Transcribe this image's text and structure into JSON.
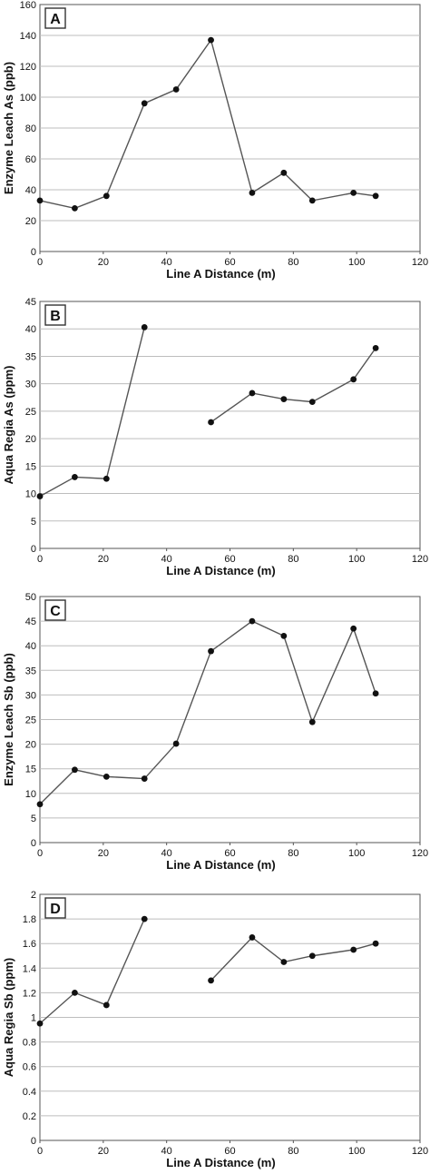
{
  "chart_data": [
    {
      "type": "line",
      "panel": "A",
      "xlabel": "Line A Distance (m)",
      "ylabel": "Enzyme Leach As (ppb)",
      "xlim": [
        0,
        120
      ],
      "ylim": [
        0,
        160
      ],
      "xticks": [
        0,
        20,
        40,
        60,
        80,
        100,
        120
      ],
      "yticks": [
        0,
        20,
        40,
        60,
        80,
        100,
        120,
        140,
        160
      ],
      "grid": true,
      "series": [
        {
          "segments": [
            [
              [
                0,
                33
              ],
              [
                11,
                28
              ],
              [
                21,
                36
              ],
              [
                33,
                96
              ],
              [
                43,
                105
              ],
              [
                54,
                137
              ],
              [
                67,
                38
              ],
              [
                77,
                51
              ],
              [
                86,
                33
              ],
              [
                99,
                38
              ],
              [
                106,
                36
              ]
            ]
          ]
        }
      ]
    },
    {
      "type": "line",
      "panel": "B",
      "xlabel": "Line A Distance (m)",
      "ylabel": "Aqua Regia As (ppm)",
      "xlim": [
        0,
        120
      ],
      "ylim": [
        0,
        45
      ],
      "xticks": [
        0,
        20,
        40,
        60,
        80,
        100,
        120
      ],
      "yticks": [
        0,
        5,
        10,
        15,
        20,
        25,
        30,
        35,
        40,
        45
      ],
      "grid": true,
      "series": [
        {
          "segments": [
            [
              [
                0,
                9.5
              ],
              [
                11,
                13
              ],
              [
                21,
                12.7
              ],
              [
                33,
                40.3
              ]
            ],
            [
              [
                54,
                23
              ],
              [
                67,
                28.3
              ],
              [
                77,
                27.2
              ],
              [
                86,
                26.7
              ],
              [
                99,
                30.8
              ],
              [
                106,
                36.5
              ]
            ]
          ]
        }
      ]
    },
    {
      "type": "line",
      "panel": "C",
      "xlabel": "Line A Distance (m)",
      "ylabel": "Enzyme Leach Sb (ppb)",
      "xlim": [
        0,
        120
      ],
      "ylim": [
        0,
        50
      ],
      "xticks": [
        0,
        20,
        40,
        60,
        80,
        100,
        120
      ],
      "yticks": [
        0,
        5,
        10,
        15,
        20,
        25,
        30,
        35,
        40,
        45,
        50
      ],
      "grid": true,
      "series": [
        {
          "segments": [
            [
              [
                0,
                7.8
              ],
              [
                11,
                14.8
              ],
              [
                21,
                13.4
              ],
              [
                33,
                13
              ],
              [
                43,
                20.1
              ],
              [
                54,
                38.9
              ],
              [
                67,
                45
              ],
              [
                77,
                42
              ],
              [
                86,
                24.5
              ],
              [
                99,
                43.5
              ],
              [
                106,
                30.3
              ]
            ]
          ]
        }
      ]
    },
    {
      "type": "line",
      "panel": "D",
      "xlabel": "Line A Distance (m)",
      "ylabel": "Aqua Regia Sb (ppm)",
      "xlim": [
        0,
        120
      ],
      "ylim": [
        0,
        2
      ],
      "xticks": [
        0,
        20,
        40,
        60,
        80,
        100,
        120
      ],
      "yticks": [
        "0",
        "0.2",
        "0.4",
        "0.6",
        "0.8",
        "1",
        "1.2",
        "1.4",
        "1.6",
        "1.8",
        "2"
      ],
      "grid": true,
      "series": [
        {
          "segments": [
            [
              [
                0,
                0.95
              ],
              [
                11,
                1.2
              ],
              [
                21,
                1.1
              ],
              [
                33,
                1.8
              ]
            ],
            [
              [
                54,
                1.3
              ],
              [
                67,
                1.65
              ],
              [
                77,
                1.45
              ],
              [
                86,
                1.5
              ],
              [
                99,
                1.55
              ],
              [
                106,
                1.6
              ]
            ]
          ]
        }
      ]
    }
  ]
}
